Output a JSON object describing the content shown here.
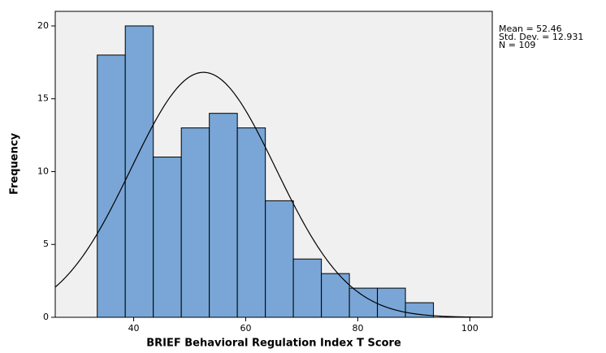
{
  "chart_data": {
    "type": "histogram",
    "x_label": "BRIEF Behavioral Regulation Index T Score",
    "y_label": "Frequency",
    "bins": [
      33.5,
      38.5,
      43.5,
      48.5,
      53.5,
      58.5,
      63.5,
      68.5,
      73.5,
      78.5,
      83.5,
      88.5,
      93.5
    ],
    "values": [
      18,
      20,
      11,
      13,
      14,
      13,
      8,
      4,
      3,
      2,
      2,
      1
    ],
    "color": "#79a6d6",
    "xlim": [
      26,
      104
    ],
    "xticks": [
      40,
      60,
      80,
      100
    ],
    "ylim": [
      0,
      21
    ],
    "yticks": [
      0,
      5,
      10,
      15,
      20
    ],
    "normal_curve": {
      "mean": 52.46,
      "sd": 12.931,
      "n": 109
    },
    "annotations": [
      "Mean = 52.46",
      "Std. Dev. = 12.931",
      "N = 109"
    ]
  }
}
